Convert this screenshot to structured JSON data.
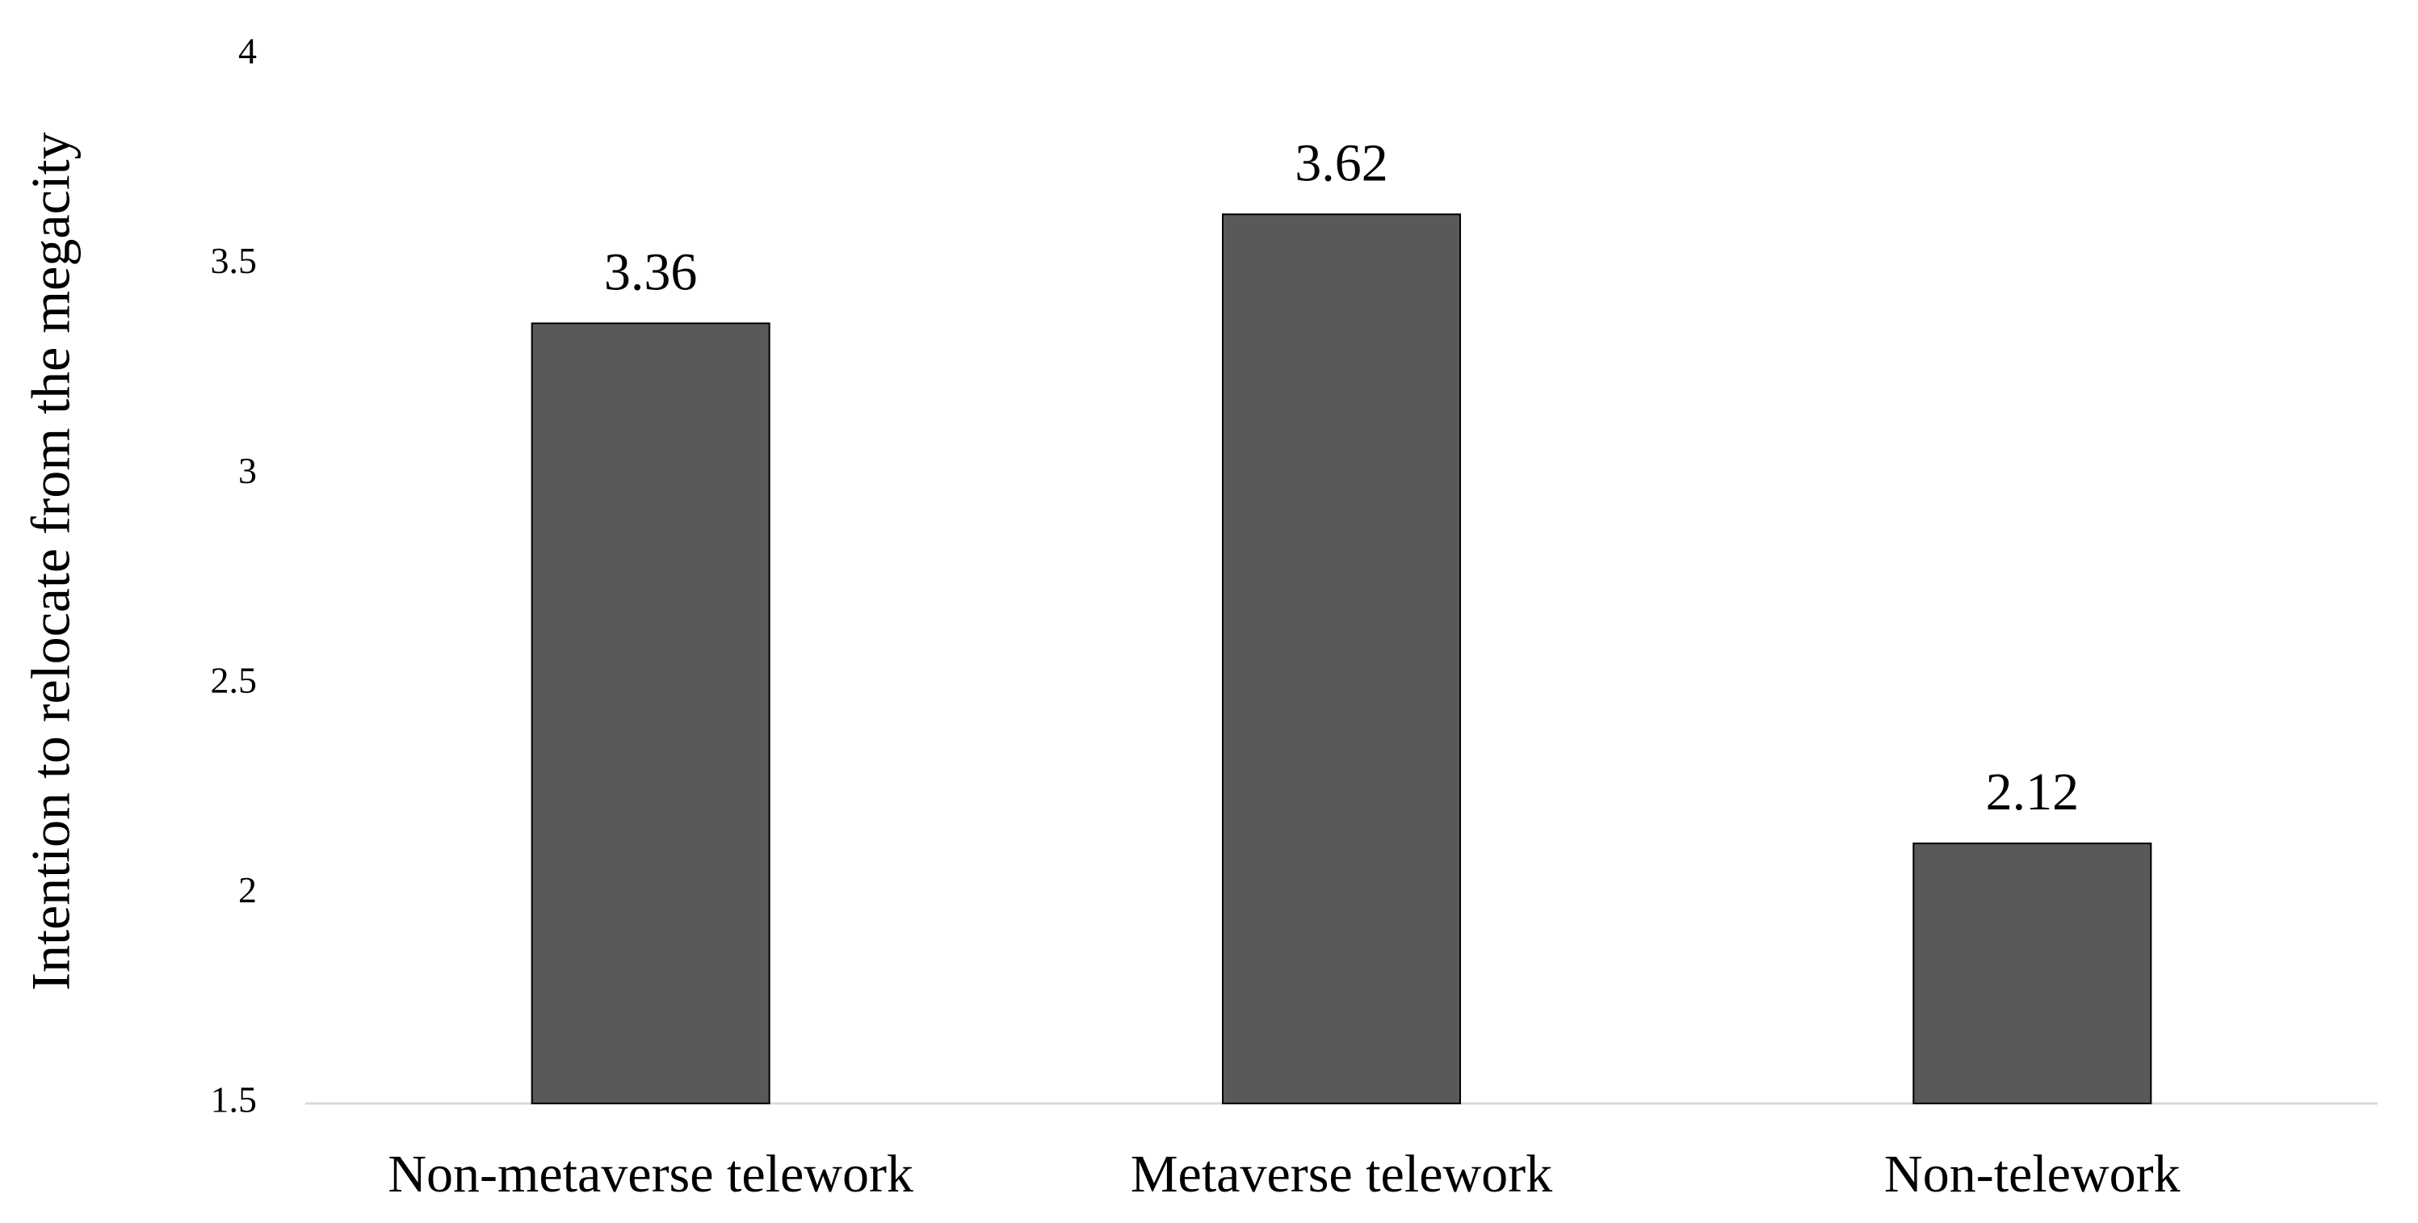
{
  "chart_data": {
    "type": "bar",
    "title": "",
    "xlabel": "",
    "ylabel": "Intention to relocate from the megacity",
    "categories": [
      "Non-metaverse telework",
      "Metaverse telework",
      "Non-telework"
    ],
    "values": [
      3.36,
      3.62,
      2.12
    ],
    "data_labels": [
      "3.36",
      "3.62",
      "2.12"
    ],
    "ylim": [
      1.5,
      4
    ],
    "yticks": [
      1.5,
      2,
      2.5,
      3,
      3.5,
      4
    ],
    "ytick_labels": [
      "1.5",
      "2",
      "2.5",
      "3",
      "3.5",
      "4"
    ],
    "grid": false,
    "legend": "none",
    "colors": {
      "bar_fill": "#595959",
      "bar_stroke": "#000000",
      "axis_line": "#d9d9d9",
      "text": "#000000"
    }
  }
}
